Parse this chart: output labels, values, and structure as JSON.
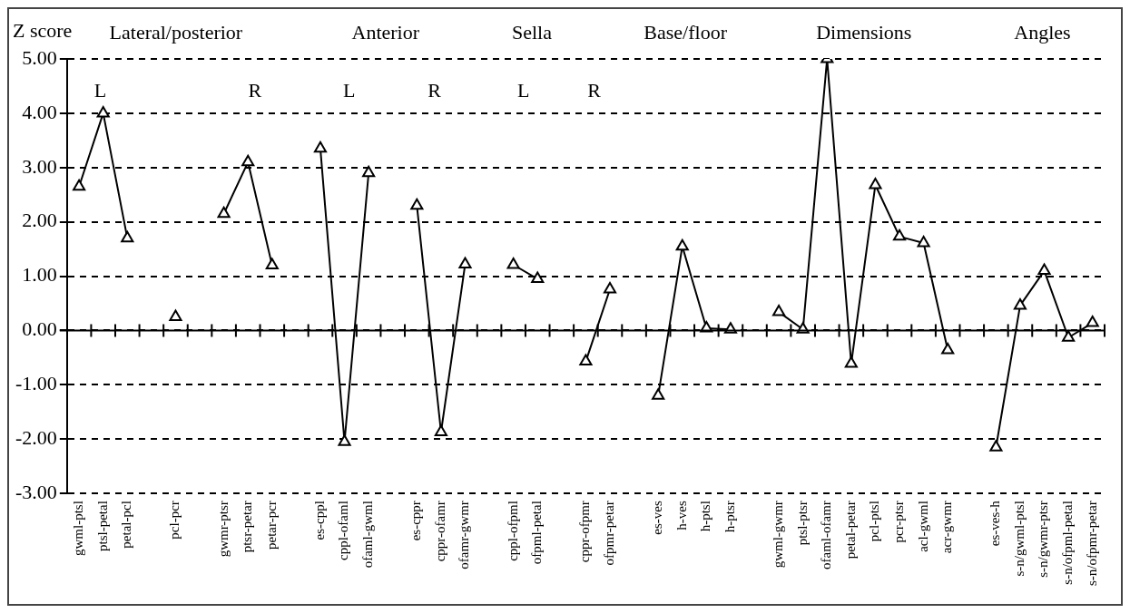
{
  "chart_data": {
    "type": "line",
    "ylabel": "Z score",
    "categories": [
      "gwml-ptsl",
      "ptsl-petal",
      "petal-pcl",
      null,
      "pcl-pcr",
      null,
      "gwmr-ptsr",
      "ptsr-petar",
      "petar-pcr",
      null,
      "es-cppl",
      "cppl-ofaml",
      "ofaml-gwml",
      null,
      "es-cppr",
      "cppr-ofamr",
      "ofamr-gwmr",
      null,
      "cppl-ofpml",
      "ofpml-petal",
      null,
      "cppr-ofpmr",
      "ofpmr-petar",
      null,
      "es-ves",
      "h-ves",
      "h-ptsl",
      "h-ptsr",
      null,
      "gwml-gwmr",
      "ptsl-ptsr",
      "ofaml-ofamr",
      "petal-petar",
      "pcl-ptsl",
      "pcr-ptsr",
      "acl-gwml",
      "acr-gwmr",
      null,
      "es-ves-h",
      "s-n/gwml-ptsl",
      "s-n/gwmr-ptsr",
      "s-n/ofpml-petal",
      "s-n/ofpmr-petar"
    ],
    "series": [
      {
        "color": "#000000",
        "values": [
          2.65,
          4.0,
          1.7,
          null,
          0.25,
          null,
          2.15,
          3.1,
          1.2,
          null,
          3.35,
          -2.05,
          2.9,
          null,
          2.3,
          -1.87,
          1.22,
          null,
          1.21,
          0.95,
          null,
          -0.57,
          0.76,
          null,
          -1.2,
          1.55,
          0.04,
          0.02,
          null,
          0.34,
          0.02,
          5.0,
          -0.61,
          2.68,
          1.73,
          1.61,
          -0.36,
          null,
          -2.15,
          0.46,
          1.1,
          -0.13,
          0.14
        ]
      }
    ],
    "ylim": [
      -3,
      5
    ],
    "yticks": [
      {
        "value": -3,
        "label": "-3.00"
      },
      {
        "value": -2,
        "label": "-2.00"
      },
      {
        "value": -1,
        "label": "-1.00"
      },
      {
        "value": 0,
        "label": "0.00"
      },
      {
        "value": 1,
        "label": "1.00"
      },
      {
        "value": 2,
        "label": "2.00"
      },
      {
        "value": 3,
        "label": "3.00"
      },
      {
        "value": 4,
        "label": "4.00"
      },
      {
        "value": 5,
        "label": "5.00"
      }
    ],
    "grid": "y",
    "legend": false,
    "marker": "triangle",
    "line_style": "solid",
    "annotations": [
      "Lateral/posterior",
      "Anterior",
      "Sella",
      "Base/floor",
      "Dimensions",
      "Angles",
      "L",
      "R",
      "L",
      "R",
      "L",
      "R"
    ]
  }
}
